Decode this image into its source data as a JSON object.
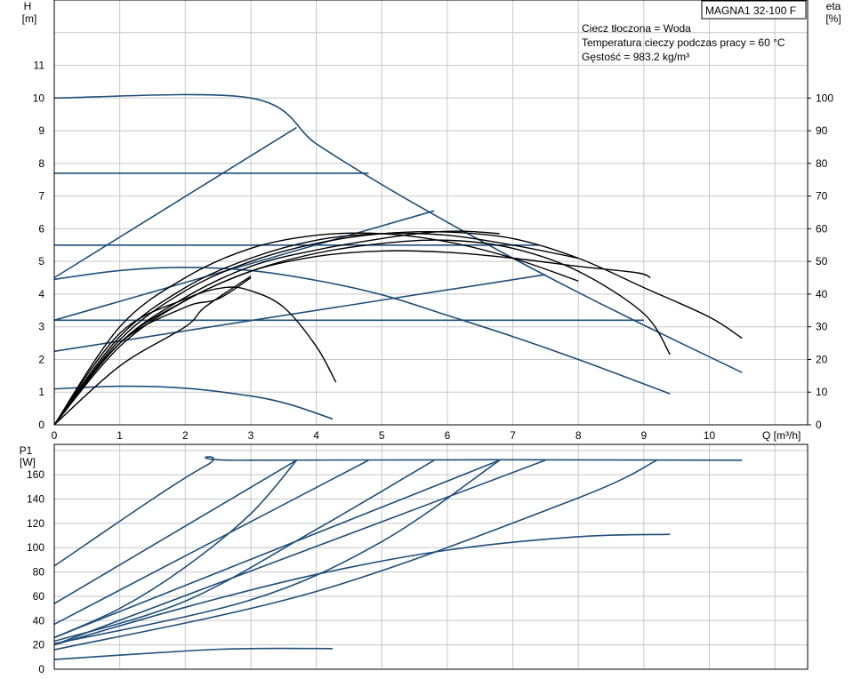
{
  "model_label": "MAGNA1 32-100 F",
  "info_lines": [
    "Ciecz tłoczona = Woda",
    "Temperatura cieczy podczas pracy = 60 °C",
    "Gęstość = 983.2 kg/m³"
  ],
  "colors": {
    "curve_blue": "#1f4e79",
    "curve_black": "#000000",
    "grid": "#c8c8c8",
    "frame": "#000000"
  },
  "chart_data": [
    {
      "id": "head_efficiency",
      "type": "line",
      "xlabel": "Q [m³/h]",
      "ylabel_left": [
        "H",
        "[m]"
      ],
      "ylabel_right": [
        "eta",
        "[%]"
      ],
      "xlim": [
        0,
        11.5
      ],
      "ylim": [
        0,
        13
      ],
      "y2lim": [
        0,
        130
      ],
      "x_ticks": [
        0,
        1,
        2,
        3,
        4,
        5,
        6,
        7,
        8,
        9,
        10
      ],
      "y_ticks": [
        0,
        1,
        2,
        3,
        4,
        5,
        6,
        7,
        8,
        9,
        10,
        11
      ],
      "y2_ticks": [
        0,
        10,
        20,
        30,
        40,
        50,
        60,
        70,
        80,
        90,
        100
      ],
      "grid": true,
      "series": [
        {
          "kind": "head",
          "color": "blue",
          "points": [
            [
              0,
              10
            ],
            [
              3,
              10
            ],
            [
              4,
              8.6
            ],
            [
              5,
              7.35
            ],
            [
              6,
              6.2
            ],
            [
              7,
              5.1
            ],
            [
              8,
              4.05
            ],
            [
              9,
              3.05
            ],
            [
              10.5,
              1.6
            ]
          ]
        },
        {
          "kind": "head",
          "color": "blue",
          "points": [
            [
              0,
              7.7
            ],
            [
              4.8,
              7.7
            ]
          ]
        },
        {
          "kind": "head",
          "color": "blue",
          "points": [
            [
              0,
              5.5
            ],
            [
              7.4,
              5.5
            ]
          ]
        },
        {
          "kind": "head",
          "color": "blue",
          "points": [
            [
              0,
              3.2
            ],
            [
              9.0,
              3.2
            ]
          ]
        },
        {
          "kind": "head",
          "color": "blue",
          "points": [
            [
              0,
              4.5
            ],
            [
              3.7,
              9.1
            ]
          ]
        },
        {
          "kind": "head",
          "color": "blue",
          "points": [
            [
              0,
              3.2
            ],
            [
              5.8,
              6.55
            ]
          ]
        },
        {
          "kind": "head",
          "color": "blue",
          "points": [
            [
              0,
              2.25
            ],
            [
              7.5,
              4.6
            ]
          ]
        },
        {
          "kind": "head",
          "color": "blue",
          "points": [
            [
              0,
              4.45
            ],
            [
              1,
              4.72
            ],
            [
              2,
              4.82
            ],
            [
              3,
              4.72
            ],
            [
              4,
              4.42
            ],
            [
              5,
              3.98
            ],
            [
              6,
              3.35
            ],
            [
              7,
              2.7
            ],
            [
              8,
              2.0
            ],
            [
              9,
              1.25
            ],
            [
              9.4,
              0.95
            ]
          ]
        },
        {
          "kind": "head",
          "color": "blue",
          "points": [
            [
              0,
              1.1
            ],
            [
              1,
              1.18
            ],
            [
              2,
              1.12
            ],
            [
              3,
              0.88
            ],
            [
              3.6,
              0.62
            ],
            [
              4.25,
              0.18
            ]
          ]
        },
        {
          "kind": "efficiency",
          "color": "black",
          "points": [
            [
              0,
              0
            ],
            [
              1,
              24
            ],
            [
              2,
              38
            ],
            [
              3,
              47
            ],
            [
              4,
              52.5
            ],
            [
              5,
              55.5
            ],
            [
              6,
              56.5
            ],
            [
              7,
              54
            ],
            [
              8,
              47
            ],
            [
              9,
              34
            ],
            [
              9.4,
              21.5
            ]
          ]
        },
        {
          "kind": "efficiency",
          "color": "black",
          "points": [
            [
              0,
              0
            ],
            [
              1,
              26
            ],
            [
              2,
              41
            ],
            [
              3,
              50
            ],
            [
              4,
              55.5
            ],
            [
              5,
              58.5
            ],
            [
              6,
              59
            ],
            [
              7,
              57
            ],
            [
              8,
              51
            ],
            [
              9,
              42
            ],
            [
              10,
              33
            ],
            [
              10.5,
              26.5
            ]
          ]
        },
        {
          "kind": "efficiency",
          "color": "black",
          "points": [
            [
              0,
              0
            ],
            [
              1,
              25
            ],
            [
              2,
              39
            ],
            [
              3,
              48.5
            ],
            [
              4,
              53.5
            ],
            [
              5,
              57
            ],
            [
              5.8,
              59
            ],
            [
              6.3,
              59.2
            ],
            [
              6.8,
              58.5
            ]
          ]
        },
        {
          "kind": "efficiency",
          "color": "black",
          "points": [
            [
              0,
              0
            ],
            [
              1,
              27
            ],
            [
              2,
              42
            ],
            [
              3,
              51
            ],
            [
              4,
              56.5
            ],
            [
              5,
              58.5
            ],
            [
              6,
              58
            ],
            [
              7,
              55
            ],
            [
              8,
              51
            ]
          ]
        },
        {
          "kind": "efficiency",
          "color": "black",
          "points": [
            [
              0,
              0
            ],
            [
              1,
              25
            ],
            [
              2,
              38
            ],
            [
              3,
              47
            ],
            [
              4,
              51.5
            ],
            [
              5,
              53.2
            ],
            [
              6,
              52.8
            ],
            [
              7,
              51
            ],
            [
              8,
              48.5
            ],
            [
              8.9,
              46.5
            ],
            [
              9.1,
              45
            ]
          ]
        },
        {
          "kind": "efficiency",
          "color": "black",
          "points": [
            [
              0,
              0
            ],
            [
              1,
              18
            ],
            [
              2,
              30
            ],
            [
              2.3,
              36
            ],
            [
              3,
              45.5
            ]
          ]
        },
        {
          "kind": "efficiency",
          "color": "black",
          "points": [
            [
              0,
              0
            ],
            [
              1,
              28
            ],
            [
              2,
              38.5
            ],
            [
              2.6,
              42
            ],
            [
              3,
              41
            ],
            [
              3.5,
              36
            ],
            [
              4,
              24
            ],
            [
              4.3,
              13
            ]
          ]
        },
        {
          "kind": "efficiency",
          "color": "black",
          "points": [
            [
              0,
              0
            ],
            [
              1,
              25
            ],
            [
              2,
              36
            ],
            [
              2.5,
              38.5
            ],
            [
              3,
              45
            ]
          ]
        },
        {
          "kind": "efficiency",
          "color": "black",
          "points": [
            [
              0,
              0
            ],
            [
              1,
              30
            ],
            [
              2,
              45
            ],
            [
              3,
              54
            ],
            [
              4,
              58
            ],
            [
              5,
              58.5
            ],
            [
              6,
              56
            ],
            [
              7,
              51
            ],
            [
              8,
              44
            ]
          ]
        }
      ]
    },
    {
      "id": "power",
      "type": "line",
      "ylabel_left": [
        "P1",
        "[W]"
      ],
      "xlim": [
        0,
        11.5
      ],
      "ylim": [
        0,
        185
      ],
      "y_ticks": [
        0,
        20,
        40,
        60,
        80,
        100,
        120,
        140,
        160
      ],
      "grid": true,
      "series": [
        {
          "color": "blue",
          "points": [
            [
              0,
              85
            ],
            [
              2.3,
              167
            ],
            [
              3,
              172
            ],
            [
              10.5,
              172
            ]
          ]
        },
        {
          "color": "blue",
          "points": [
            [
              0,
              54
            ],
            [
              3.7,
              172
            ]
          ]
        },
        {
          "color": "blue",
          "points": [
            [
              0,
              26
            ],
            [
              1,
              50
            ],
            [
              2,
              84
            ],
            [
              3,
              128
            ],
            [
              3.7,
              172
            ]
          ]
        },
        {
          "color": "blue",
          "points": [
            [
              0,
              37
            ],
            [
              4.8,
              172
            ]
          ]
        },
        {
          "color": "blue",
          "points": [
            [
              0,
              23
            ],
            [
              2,
              56
            ],
            [
              4,
              115
            ],
            [
              5.8,
              172
            ]
          ]
        },
        {
          "color": "blue",
          "points": [
            [
              0,
              26
            ],
            [
              6.8,
              172
            ]
          ]
        },
        {
          "color": "blue",
          "points": [
            [
              0,
              21
            ],
            [
              3,
              57
            ],
            [
              5,
              105
            ],
            [
              6.8,
              172
            ]
          ]
        },
        {
          "color": "blue",
          "points": [
            [
              0,
              20
            ],
            [
              7.5,
              172
            ]
          ]
        },
        {
          "color": "blue",
          "points": [
            [
              0,
              16
            ],
            [
              4,
              64
            ],
            [
              8,
              141
            ],
            [
              9.2,
              172
            ]
          ]
        },
        {
          "color": "blue",
          "points": [
            [
              0,
              20
            ],
            [
              2,
              51
            ],
            [
              4,
              78
            ],
            [
              6,
              98
            ],
            [
              8,
              109
            ],
            [
              9.4,
              111
            ]
          ]
        },
        {
          "color": "blue",
          "points": [
            [
              0,
              8
            ],
            [
              2,
              15
            ],
            [
              3,
              17
            ],
            [
              4.25,
              17
            ]
          ]
        }
      ]
    }
  ]
}
